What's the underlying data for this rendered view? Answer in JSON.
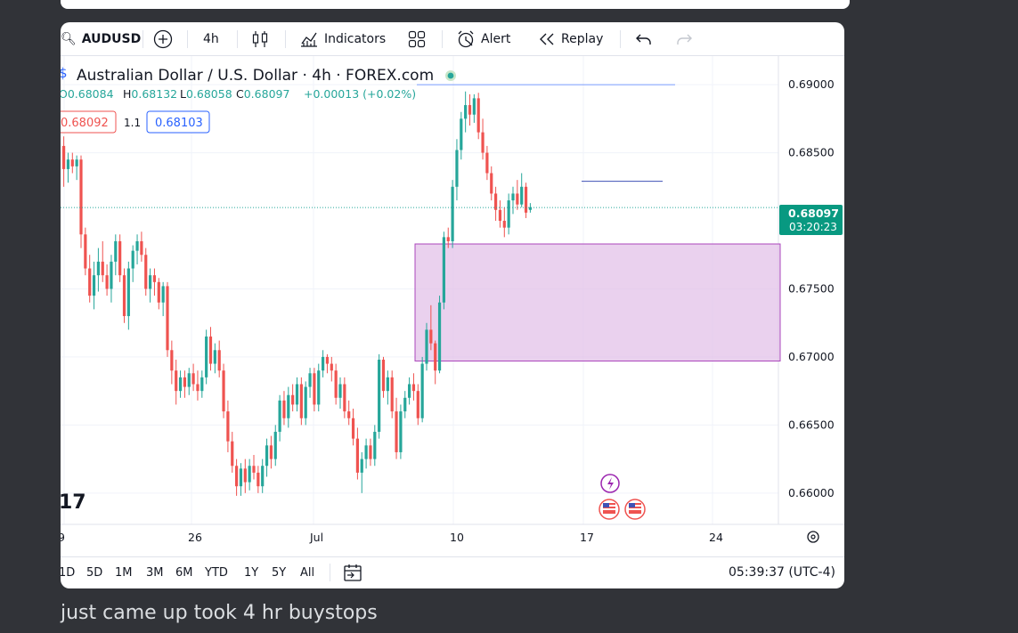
{
  "toolbar": {
    "symbol": "AUDUSD",
    "interval": "4h",
    "indicators_label": "Indicators",
    "alert_label": "Alert",
    "replay_label": "Replay"
  },
  "legend": {
    "title": "Australian Dollar / U.S. Dollar · 4h · FOREX.com",
    "open_label": "O",
    "open": "0.68084",
    "high_label": "H",
    "high": "0.68132",
    "low_label": "L",
    "low": "0.68058",
    "close_label": "C",
    "close": "0.68097",
    "change": "+0.00013 (+0.02%)",
    "sell_price": "0.68092",
    "spread": "1.1",
    "buy_price": "0.68103"
  },
  "price_axis": {
    "ticks": [
      "0.69000",
      "0.68500",
      "0.67500",
      "0.67000",
      "0.66500",
      "0.66000"
    ],
    "last_price": "0.68097",
    "countdown": "03:20:23"
  },
  "time_axis": {
    "ticks": [
      "9",
      "26",
      "Jul",
      "10",
      "17",
      "24"
    ]
  },
  "bottom_bar": {
    "ranges": [
      "1D",
      "5D",
      "1M",
      "3M",
      "6M",
      "YTD",
      "1Y",
      "5Y",
      "All"
    ],
    "clock": "05:39:37 (UTC-4)"
  },
  "logo_text": "17",
  "caption": "just came up took 4 hr buystops",
  "colors": {
    "up": "#26a69a",
    "down": "#ef5350",
    "zone_fill": "#e1bee7",
    "zone_border": "#ab47bc",
    "blue_line": "#2962ff",
    "accent": "#2962ff"
  },
  "chart_data": {
    "type": "candlestick",
    "ylim": [
      0.6577,
      0.6921
    ],
    "rectangle_zone": {
      "top": 0.6783,
      "bottom": 0.6697
    },
    "horizontal_line": 0.69,
    "short_line": 0.6829,
    "candles": [
      [
        0.6855,
        0.6862,
        0.6825,
        0.6838
      ],
      [
        0.6838,
        0.685,
        0.6828,
        0.6845
      ],
      [
        0.6845,
        0.685,
        0.6835,
        0.684
      ],
      [
        0.684,
        0.6848,
        0.683,
        0.6845
      ],
      [
        0.6845,
        0.6848,
        0.678,
        0.679
      ],
      [
        0.679,
        0.6795,
        0.676,
        0.6765
      ],
      [
        0.6765,
        0.6775,
        0.674,
        0.6745
      ],
      [
        0.6745,
        0.677,
        0.6735,
        0.676
      ],
      [
        0.676,
        0.678,
        0.6748,
        0.677
      ],
      [
        0.677,
        0.6785,
        0.6755,
        0.676
      ],
      [
        0.676,
        0.6768,
        0.6745,
        0.675
      ],
      [
        0.675,
        0.6775,
        0.674,
        0.677
      ],
      [
        0.677,
        0.679,
        0.676,
        0.6785
      ],
      [
        0.6785,
        0.679,
        0.6755,
        0.676
      ],
      [
        0.676,
        0.6765,
        0.6725,
        0.673
      ],
      [
        0.673,
        0.677,
        0.672,
        0.6765
      ],
      [
        0.6765,
        0.6782,
        0.6755,
        0.6778
      ],
      [
        0.6778,
        0.679,
        0.6768,
        0.6785
      ],
      [
        0.6785,
        0.6792,
        0.677,
        0.6775
      ],
      [
        0.6775,
        0.678,
        0.6745,
        0.675
      ],
      [
        0.675,
        0.6765,
        0.674,
        0.676
      ],
      [
        0.676,
        0.6765,
        0.6745,
        0.6755
      ],
      [
        0.6755,
        0.6758,
        0.6735,
        0.674
      ],
      [
        0.674,
        0.6755,
        0.673,
        0.6752
      ],
      [
        0.6752,
        0.6755,
        0.67,
        0.6705
      ],
      [
        0.6705,
        0.6712,
        0.668,
        0.669
      ],
      [
        0.669,
        0.6698,
        0.6665,
        0.6675
      ],
      [
        0.6675,
        0.669,
        0.667,
        0.6685
      ],
      [
        0.6685,
        0.669,
        0.667,
        0.6678
      ],
      [
        0.6678,
        0.6692,
        0.6672,
        0.6688
      ],
      [
        0.6688,
        0.6695,
        0.6675,
        0.668
      ],
      [
        0.668,
        0.669,
        0.6668,
        0.6675
      ],
      [
        0.6675,
        0.669,
        0.667,
        0.6685
      ],
      [
        0.6685,
        0.672,
        0.668,
        0.6715
      ],
      [
        0.6715,
        0.6722,
        0.669,
        0.6695
      ],
      [
        0.6695,
        0.671,
        0.6688,
        0.6705
      ],
      [
        0.6705,
        0.6712,
        0.6685,
        0.669
      ],
      [
        0.669,
        0.6695,
        0.6655,
        0.666
      ],
      [
        0.666,
        0.6668,
        0.663,
        0.6638
      ],
      [
        0.6638,
        0.6645,
        0.6615,
        0.662
      ],
      [
        0.662,
        0.6625,
        0.6598,
        0.6605
      ],
      [
        0.6605,
        0.6622,
        0.6598,
        0.6618
      ],
      [
        0.6618,
        0.6625,
        0.66,
        0.6608
      ],
      [
        0.6608,
        0.6625,
        0.6602,
        0.662
      ],
      [
        0.662,
        0.6628,
        0.661,
        0.6615
      ],
      [
        0.6615,
        0.662,
        0.66,
        0.6605
      ],
      [
        0.6605,
        0.6625,
        0.66,
        0.662
      ],
      [
        0.662,
        0.664,
        0.6612,
        0.6635
      ],
      [
        0.6635,
        0.6642,
        0.6618,
        0.6625
      ],
      [
        0.6625,
        0.665,
        0.662,
        0.6645
      ],
      [
        0.6645,
        0.6672,
        0.6638,
        0.6668
      ],
      [
        0.6668,
        0.6675,
        0.665,
        0.6655
      ],
      [
        0.6655,
        0.6678,
        0.6648,
        0.6672
      ],
      [
        0.6672,
        0.668,
        0.666,
        0.6665
      ],
      [
        0.6665,
        0.6685,
        0.666,
        0.668
      ],
      [
        0.668,
        0.6685,
        0.665,
        0.6655
      ],
      [
        0.6655,
        0.6682,
        0.665,
        0.6678
      ],
      [
        0.6678,
        0.6692,
        0.667,
        0.6688
      ],
      [
        0.6688,
        0.6692,
        0.666,
        0.6665
      ],
      [
        0.6665,
        0.6695,
        0.666,
        0.669
      ],
      [
        0.669,
        0.6705,
        0.6685,
        0.67
      ],
      [
        0.67,
        0.6702,
        0.6688,
        0.6695
      ],
      [
        0.6695,
        0.67,
        0.6682,
        0.669
      ],
      [
        0.669,
        0.6695,
        0.6665,
        0.667
      ],
      [
        0.667,
        0.6685,
        0.6662,
        0.668
      ],
      [
        0.668,
        0.6685,
        0.6655,
        0.666
      ],
      [
        0.666,
        0.6668,
        0.665,
        0.6655
      ],
      [
        0.6655,
        0.6662,
        0.6635,
        0.664
      ],
      [
        0.664,
        0.6648,
        0.661,
        0.6615
      ],
      [
        0.6615,
        0.663,
        0.66,
        0.6625
      ],
      [
        0.6625,
        0.664,
        0.6618,
        0.6635
      ],
      [
        0.6635,
        0.664,
        0.662,
        0.6625
      ],
      [
        0.6625,
        0.665,
        0.662,
        0.6645
      ],
      [
        0.6645,
        0.6702,
        0.664,
        0.6698
      ],
      [
        0.6698,
        0.67,
        0.667,
        0.6675
      ],
      [
        0.6675,
        0.669,
        0.6665,
        0.6685
      ],
      [
        0.6685,
        0.669,
        0.6655,
        0.666
      ],
      [
        0.666,
        0.667,
        0.6625,
        0.663
      ],
      [
        0.663,
        0.6665,
        0.6625,
        0.666
      ],
      [
        0.666,
        0.6675,
        0.6655,
        0.667
      ],
      [
        0.667,
        0.6685,
        0.6665,
        0.668
      ],
      [
        0.668,
        0.6688,
        0.6668,
        0.6675
      ],
      [
        0.6675,
        0.668,
        0.665,
        0.6655
      ],
      [
        0.6655,
        0.67,
        0.6652,
        0.6695
      ],
      [
        0.6695,
        0.6725,
        0.669,
        0.672
      ],
      [
        0.672,
        0.6738,
        0.6705,
        0.671
      ],
      [
        0.671,
        0.6712,
        0.668,
        0.669
      ],
      [
        0.669,
        0.6745,
        0.6688,
        0.674
      ],
      [
        0.674,
        0.6792,
        0.6735,
        0.6788
      ],
      [
        0.6788,
        0.6795,
        0.678,
        0.6785
      ],
      [
        0.6785,
        0.683,
        0.678,
        0.6825
      ],
      [
        0.6825,
        0.686,
        0.6815,
        0.6852
      ],
      [
        0.6852,
        0.688,
        0.6845,
        0.6875
      ],
      [
        0.6875,
        0.6895,
        0.6865,
        0.6885
      ],
      [
        0.6885,
        0.6893,
        0.687,
        0.6878
      ],
      [
        0.6878,
        0.6893,
        0.6872,
        0.689
      ],
      [
        0.689,
        0.6894,
        0.686,
        0.6865
      ],
      [
        0.6865,
        0.6875,
        0.6845,
        0.685
      ],
      [
        0.685,
        0.6855,
        0.683,
        0.6835
      ],
      [
        0.6835,
        0.684,
        0.6815,
        0.682
      ],
      [
        0.682,
        0.6825,
        0.68,
        0.6808
      ],
      [
        0.6808,
        0.6815,
        0.6795,
        0.68
      ],
      [
        0.68,
        0.681,
        0.6788,
        0.6795
      ],
      [
        0.6795,
        0.682,
        0.679,
        0.6815
      ],
      [
        0.6815,
        0.6825,
        0.6805,
        0.682
      ],
      [
        0.682,
        0.683,
        0.6808,
        0.6812
      ],
      [
        0.6812,
        0.6835,
        0.681,
        0.6825
      ],
      [
        0.6825,
        0.6828,
        0.6802,
        0.6806
      ],
      [
        0.6808,
        0.6813,
        0.6806,
        0.681
      ]
    ]
  }
}
